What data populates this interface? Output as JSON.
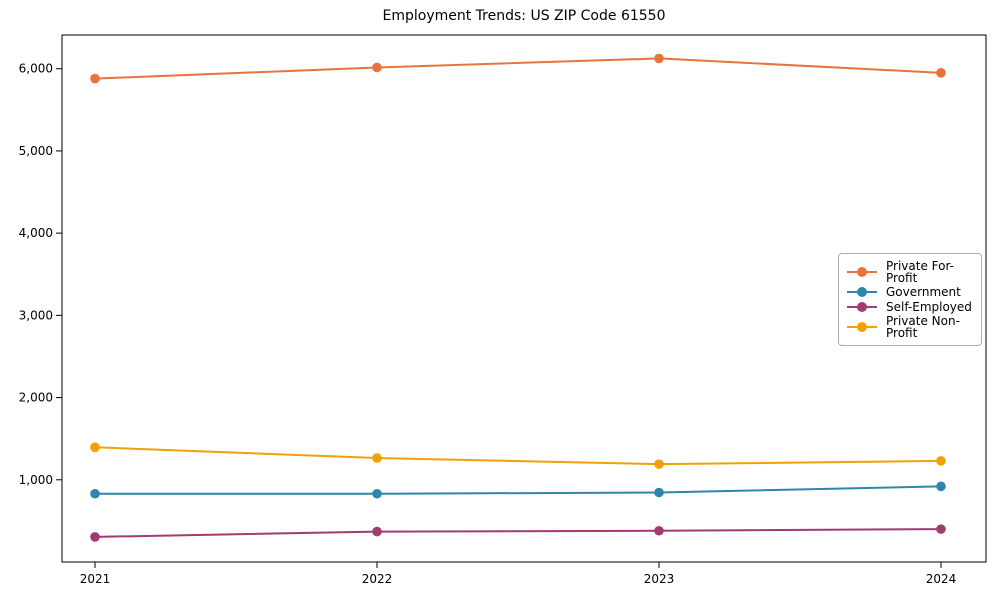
{
  "chart_data": {
    "type": "line",
    "title": "Employment Trends: US ZIP Code 61550",
    "xlabel": "",
    "ylabel": "",
    "x": [
      "2021",
      "2022",
      "2023",
      "2024"
    ],
    "series": [
      {
        "name": "Private For-Profit",
        "color": "#E8743B",
        "values": [
          5880,
          6015,
          6125,
          5950
        ]
      },
      {
        "name": "Government",
        "color": "#2E86AB",
        "values": [
          830,
          830,
          845,
          920
        ]
      },
      {
        "name": "Self-Employed",
        "color": "#A23B72",
        "values": [
          305,
          370,
          380,
          400
        ]
      },
      {
        "name": "Private Non-Profit",
        "color": "#F2A104",
        "values": [
          1395,
          1265,
          1190,
          1230
        ]
      }
    ],
    "yticks": [
      1000,
      2000,
      3000,
      4000,
      5000,
      6000
    ],
    "ytick_labels": [
      "1,000",
      "2,000",
      "3,000",
      "4,000",
      "5,000",
      "6,000"
    ],
    "ylim": [
      0,
      6410
    ],
    "grid": false,
    "legend_position": "center right",
    "spine_color": "#000000",
    "text_color": "#000000"
  }
}
